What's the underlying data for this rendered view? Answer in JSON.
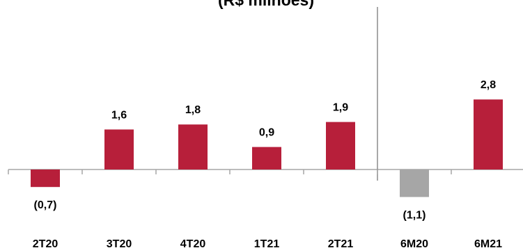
{
  "chart_data": {
    "type": "bar",
    "title": "(R$ milhões)",
    "categories": [
      "2T20",
      "3T20",
      "4T20",
      "1T21",
      "2T21",
      "6M20",
      "6M21"
    ],
    "values": [
      -0.7,
      1.6,
      1.8,
      0.9,
      1.9,
      -1.1,
      2.8
    ],
    "value_labels": [
      "(0,7)",
      "1,6",
      "1,8",
      "0,9",
      "1,9",
      "(1,1)",
      "2,8"
    ],
    "colors": [
      "#b71f3a",
      "#b71f3a",
      "#b71f3a",
      "#b71f3a",
      "#b71f3a",
      "#a6a6a6",
      "#b71f3a"
    ],
    "axis_color": "#a6a6a6",
    "grid": false,
    "legend": "none"
  }
}
